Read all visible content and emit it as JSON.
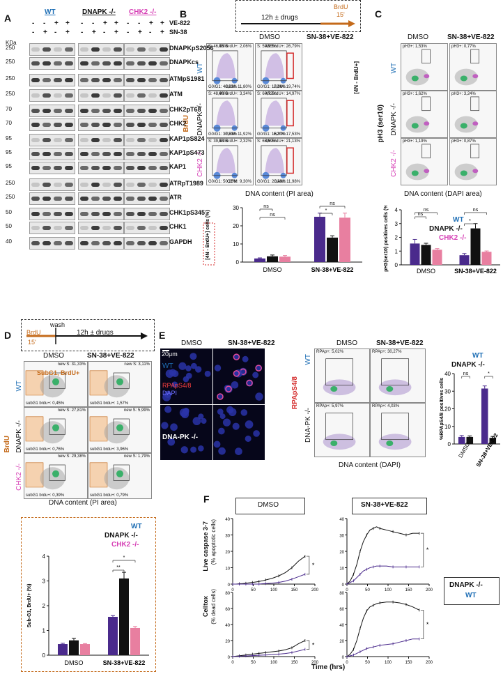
{
  "panels": {
    "A": "A",
    "B": "B",
    "C": "C",
    "D": "D",
    "E": "E",
    "F": "F"
  },
  "panelA": {
    "genotypes": [
      "WT",
      "DNAPK -/-",
      "CHK2 -/-"
    ],
    "genotype_colors": [
      "#1f6fb5",
      "#111111",
      "#d63fb5"
    ],
    "treatments": [
      {
        "name": "VE-822",
        "signs": [
          "-",
          "-",
          "+",
          "+"
        ]
      },
      {
        "name": "SN-38",
        "signs": [
          "-",
          "+",
          "-",
          "+"
        ]
      }
    ],
    "kda_label": "KDa",
    "rows": [
      {
        "kda": "250",
        "label": "DNAPKpS2056"
      },
      {
        "kda": "250",
        "label": "DNAPKcs"
      },
      {
        "kda": "250",
        "label": "ATMpS1981"
      },
      {
        "kda": "250",
        "label": "ATM"
      },
      {
        "kda": "70",
        "label": "CHK2pT68"
      },
      {
        "kda": "70",
        "label": "CHK2"
      },
      {
        "kda": "95",
        "label": "KAP1pS824"
      },
      {
        "kda": "95",
        "label": "KAP1pS473"
      },
      {
        "kda": "95",
        "label": "KAP1"
      },
      {
        "kda": "250",
        "label": "ATRpT1989"
      },
      {
        "kda": "250",
        "label": "ATR"
      },
      {
        "kda": "50",
        "label": "CHK1pS345"
      },
      {
        "kda": "50",
        "label": "CHK1"
      },
      {
        "kda": "40",
        "label": "GAPDH"
      }
    ]
  },
  "panelB": {
    "timeline": {
      "duration": "12h ± drugs",
      "brdu": "BrdU",
      "brdu_time": "15'"
    },
    "conditions": [
      "DMSO",
      "SN-38+VE-822"
    ],
    "genotypes": [
      "WT",
      "DNAPK -/-",
      "CHK2 -/-"
    ],
    "yaxis": "BrdU",
    "xaxis": "DNA content (PI area)",
    "gate_label": "[4N - BrdU+]",
    "gates": [
      {
        "s": "S: 46,55%",
        "g1": "G0/G1: 43,63%",
        "g2": "G2/M: 11,80%",
        "n4": "4N BrdU+: 2,06%"
      },
      {
        "s": "S: 59,95%",
        "g1": "G0/G1: 17,66%",
        "g2": "G2/M: 19,74%",
        "n4": "4N BrdU+: 26,79%"
      },
      {
        "s": "S: 48,90%",
        "g1": "G0/G1: 37,53%",
        "g2": "G2/M: 11,92%",
        "n4": "4N BrdU+: 3,34%"
      },
      {
        "s": "S: 60,72%",
        "g1": "G0/G1: 16,37%",
        "g2": "G2/M: 17,53%",
        "n4": "4N BrdU+: 14,97%"
      },
      {
        "s": "S: 39,50%",
        "g1": "G0/G1: 50,25%",
        "g2": "G2/M: 9,30%",
        "n4": "4N BrdU+: 2,32%"
      },
      {
        "s": "S: 65,69%",
        "g1": "G0/G1: 20,48%",
        "g2": "G2/M: 11,98%",
        "n4": "4N BrdU+: 21,13%"
      }
    ],
    "bar_ylabel": "[4N - BrdU+] cells (%)",
    "ns": "ns",
    "star": "*"
  },
  "panelC": {
    "conditions": [
      "DMSO",
      "SN-38+VE-822"
    ],
    "genotypes": [
      "WT",
      "DNAPK -/-",
      "CHK2 -/-"
    ],
    "yaxis": "pH3 (ser10)",
    "xaxis": "DNA content (DAPI area)",
    "gates": [
      "pH3+: 1,53%",
      "pH3+: 0,77%",
      "pH3+: 1,62%",
      "pH3+: 3,24%",
      "pH3+: 1,19%",
      "pH3+: 0,87%"
    ],
    "legend": [
      "WT",
      "DNAPK -/-",
      "CHK2 -/-"
    ],
    "bar_ylabel": "pH3(ser10) positives cells (%)"
  },
  "panelD": {
    "timeline": {
      "brdu": "BrdU",
      "brdu_time": "15'",
      "wash": "wash",
      "duration": "12h ± drugs"
    },
    "conditions": [
      "DMSO",
      "SN-38+VE-822"
    ],
    "genotypes": [
      "WT",
      "DNAPK -/-",
      "CHK2 -/-"
    ],
    "gate_name": "SubG1, BrdU+",
    "gates": [
      {
        "news": "new S: 31,33%",
        "sub": "subG1 brdu+: 0,45%"
      },
      {
        "news": "new S: 3,11%",
        "sub": "subG1 brdu+: 1,57%"
      },
      {
        "news": "new S: 27,81%",
        "sub": "subG1 brdu+: 0,76%"
      },
      {
        "news": "new S: 5,99%",
        "sub": "subG1 brdu+: 3,96%"
      },
      {
        "news": "new S: 29,38%",
        "sub": "subG1 brdu+: 0,39%"
      },
      {
        "news": "new S: 1,79%",
        "sub": "subG1 brdu+: 0,79%"
      }
    ],
    "yaxis": "BrdU",
    "xaxis": "DNA content (PI area)",
    "legend": [
      "WT",
      "DNAPK -/-",
      "CHK2 -/-"
    ],
    "bar_ylabel": "Sub-G1, BrdU+ (%)",
    "stars": [
      "**",
      "*"
    ]
  },
  "panelE": {
    "conditions": [
      "DMSO",
      "SN-38+VE-822"
    ],
    "scale": "20μm",
    "genotypes": [
      "WT",
      "DNA-PK -/-"
    ],
    "stain_red": "RPApS4/8",
    "stain_blue": "DAPI",
    "flow_yaxis": "RPApS4/8",
    "flow_xaxis": "DNA content (DAPI)",
    "gates": [
      "RPAp+: 5,02%",
      "RPAp+: 30,27%",
      "RPAp+: 5,97%",
      "RPAp+: 4,03%"
    ],
    "legend": [
      "WT",
      "DNAPK -/-"
    ],
    "bar_ylabel": "%RPApS4/8 positives cells",
    "ns": "ns",
    "star": "*"
  },
  "panelF": {
    "conditions": [
      "DMSO",
      "SN-38+VE-822"
    ],
    "y1": "Live caspase 3-7",
    "y1b": "(% apoptotic cells)",
    "y2": "Celltox",
    "y2b": "(% dead cells)",
    "xaxis": "Time (hrs)",
    "legend": [
      "DNAPK -/-",
      "WT"
    ]
  },
  "colors": {
    "wt": "#4a2a8c",
    "dnapk": "#111111",
    "chk2": "#e87fa0",
    "wt_text": "#1f6fb5",
    "chk2_text": "#d63fb5",
    "orange": "#c46a1a",
    "red": "#d42a2a"
  },
  "chart_data": [
    {
      "type": "bar",
      "title": "",
      "ylabel": "[4N - BrdU+] cells (%)",
      "categories": [
        "DMSO",
        "SN-38+VE-822"
      ],
      "series": [
        {
          "name": "WT",
          "values": [
            2,
            25
          ]
        },
        {
          "name": "DNAPK -/-",
          "values": [
            3.2,
            13.5
          ]
        },
        {
          "name": "CHK2 -/-",
          "values": [
            3,
            24.5
          ]
        }
      ],
      "errors": [
        [
          0.3,
          2
        ],
        [
          0.7,
          1
        ],
        [
          0.6,
          2.5
        ]
      ],
      "ylim": [
        0,
        30
      ],
      "yticks": [
        0,
        10,
        20,
        30
      ]
    },
    {
      "type": "bar",
      "ylabel": "pH3(ser10) positives cells (%)",
      "categories": [
        "DMSO",
        "SN-38+VE-822"
      ],
      "series": [
        {
          "name": "WT",
          "values": [
            1.55,
            0.7
          ]
        },
        {
          "name": "DNAPK -/-",
          "values": [
            1.45,
            2.65
          ]
        },
        {
          "name": "CHK2 -/-",
          "values": [
            1.1,
            0.95
          ]
        }
      ],
      "errors": [
        [
          0.3,
          0.12
        ],
        [
          0.12,
          0.35
        ],
        [
          0.08,
          0.06
        ]
      ],
      "ylim": [
        0,
        4
      ],
      "yticks": [
        0,
        1,
        2,
        3,
        4
      ]
    },
    {
      "type": "bar",
      "ylabel": "Sub-G1, BrdU+ (%)",
      "categories": [
        "DMSO",
        "SN-38+VE-822"
      ],
      "series": [
        {
          "name": "WT",
          "values": [
            0.45,
            1.55
          ]
        },
        {
          "name": "DNAPK -/-",
          "values": [
            0.6,
            3.1
          ]
        },
        {
          "name": "CHK2 -/-",
          "values": [
            0.45,
            1.1
          ]
        }
      ],
      "errors": [
        [
          0.03,
          0.05
        ],
        [
          0.08,
          0.25
        ],
        [
          0.02,
          0.06
        ]
      ],
      "ylim": [
        0,
        4
      ],
      "yticks": [
        0,
        1,
        2,
        3,
        4
      ]
    },
    {
      "type": "bar",
      "ylabel": "%RPApS4/8 positives cells",
      "categories": [
        "DMSO",
        "SN-38+VE-822"
      ],
      "series": [
        {
          "name": "WT",
          "values": [
            4,
            31.5
          ]
        },
        {
          "name": "DNAPK -/-",
          "values": [
            4,
            3.5
          ]
        }
      ],
      "errors": [
        [
          0.8,
          1.5
        ],
        [
          0.6,
          0.8
        ]
      ],
      "ylim": [
        0,
        40
      ],
      "yticks": [
        0,
        10,
        20,
        30,
        40
      ]
    },
    {
      "type": "line",
      "title": "DMSO",
      "ylabel": "Live caspase 3-7 (% apoptotic cells)",
      "xlabel": "Time (hrs)",
      "x": [
        0,
        8,
        16,
        24,
        32,
        40,
        48,
        56,
        64,
        72,
        80,
        96,
        112,
        128,
        144,
        160,
        176
      ],
      "series": [
        {
          "name": "DNAPK -/-",
          "values": [
            0,
            0,
            0.2,
            0.3,
            0.5,
            0.8,
            1,
            1.3,
            1.6,
            2,
            2.5,
            3.5,
            5,
            7,
            10,
            14,
            17
          ]
        },
        {
          "name": "WT",
          "values": [
            0,
            0,
            0,
            0,
            0,
            0,
            0,
            0,
            0,
            0.2,
            0.3,
            0.6,
            1,
            1.8,
            3,
            4.5,
            6
          ]
        }
      ],
      "xlim": [
        0,
        200
      ],
      "ylim": [
        0,
        40
      ]
    },
    {
      "type": "line",
      "title": "SN-38+VE-822",
      "ylabel": "Live caspase 3-7 (% apoptotic cells)",
      "xlabel": "Time (hrs)",
      "x": [
        0,
        8,
        16,
        24,
        32,
        40,
        48,
        56,
        64,
        72,
        80,
        96,
        112,
        128,
        144,
        160,
        176
      ],
      "series": [
        {
          "name": "DNAPK -/-",
          "values": [
            0,
            2,
            6,
            12,
            20,
            26,
            30,
            33,
            34,
            35,
            34,
            33,
            32,
            31,
            30,
            31,
            31
          ]
        },
        {
          "name": "WT",
          "values": [
            0,
            1,
            2,
            4,
            6,
            8,
            9,
            10,
            10.5,
            11,
            11,
            11,
            10.5,
            10.5,
            10.5,
            10.5,
            10.5
          ]
        }
      ],
      "xlim": [
        0,
        200
      ],
      "ylim": [
        0,
        40
      ]
    },
    {
      "type": "line",
      "title": "DMSO",
      "ylabel": "Celltox (% dead cells)",
      "xlabel": "Time (hrs)",
      "x": [
        0,
        8,
        16,
        24,
        32,
        40,
        48,
        56,
        64,
        72,
        80,
        96,
        112,
        128,
        144,
        160,
        176
      ],
      "series": [
        {
          "name": "DNAPK -/-",
          "values": [
            0,
            0.5,
            1,
            1.5,
            2,
            2.5,
            3,
            3.5,
            4,
            4.5,
            5,
            6,
            7,
            8.5,
            11,
            16,
            20
          ]
        },
        {
          "name": "WT",
          "values": [
            0,
            0.2,
            0.4,
            0.6,
            0.8,
            1,
            1.2,
            1.4,
            1.6,
            1.8,
            2,
            2.4,
            3,
            3.8,
            5,
            7,
            9
          ]
        }
      ],
      "xlim": [
        0,
        200
      ],
      "ylim": [
        0,
        80
      ]
    },
    {
      "type": "line",
      "title": "SN-38+VE-822",
      "ylabel": "Celltox (% dead cells)",
      "xlabel": "Time (hrs)",
      "x": [
        0,
        8,
        16,
        24,
        32,
        40,
        48,
        56,
        64,
        72,
        80,
        96,
        112,
        128,
        144,
        160,
        176
      ],
      "series": [
        {
          "name": "DNAPK -/-",
          "values": [
            0,
            3,
            9,
            20,
            35,
            48,
            57,
            62,
            64,
            66,
            67,
            68,
            68,
            67,
            65,
            62,
            58
          ]
        },
        {
          "name": "WT",
          "values": [
            0,
            1,
            2,
            4,
            6,
            8,
            10,
            11,
            12,
            13,
            14,
            15,
            16,
            18,
            20,
            22,
            22
          ]
        }
      ],
      "xlim": [
        0,
        200
      ],
      "ylim": [
        0,
        80
      ]
    }
  ]
}
